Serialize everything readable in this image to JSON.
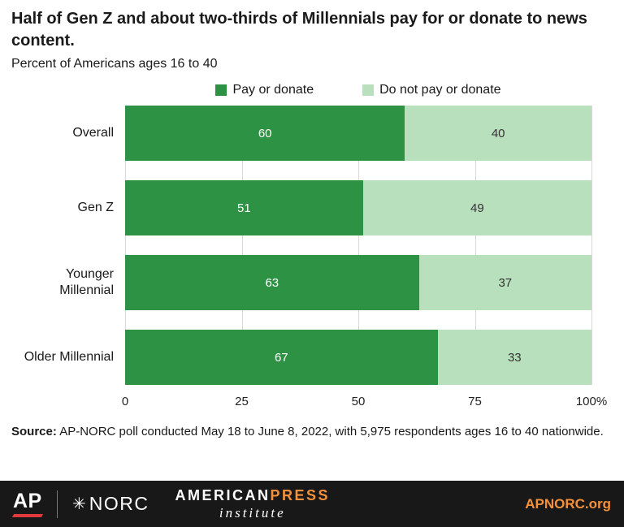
{
  "title": "Half of Gen Z and about two-thirds of Millennials pay for or donate to news content.",
  "subtitle": "Percent of Americans ages 16 to 40",
  "chart_data": {
    "type": "bar",
    "orientation": "horizontal",
    "stacked": true,
    "categories": [
      "Overall",
      "Gen Z",
      "Younger Millennial",
      "Older Millennial"
    ],
    "series": [
      {
        "name": "Pay or donate",
        "color": "#2e9245",
        "label_color": "#ffffff",
        "values": [
          60,
          51,
          63,
          67
        ]
      },
      {
        "name": "Do not pay or donate",
        "color": "#b9e0bd",
        "label_color": "#333333",
        "values": [
          40,
          49,
          37,
          33
        ]
      }
    ],
    "xlim": [
      0,
      100
    ],
    "xtick_values": [
      0,
      25,
      50,
      75,
      100
    ],
    "xtick_labels": [
      "0",
      "25",
      "50",
      "75",
      "100%"
    ],
    "grid": true,
    "legend_position": "top"
  },
  "source": {
    "label": "Source:",
    "text": " AP-NORC poll conducted May 18 to June 8, 2022, with 5,975 respondents ages 16 to 40 nationwide."
  },
  "footer": {
    "ap_logo": "AP",
    "norc_star": "✳",
    "norc_logo": "NORC",
    "api_american": "AMERICAN",
    "api_press": "PRESS",
    "api_institute": "institute",
    "site_link": "APNORC.org",
    "orange": "#f5913a",
    "ap_red": "#e0393e"
  }
}
